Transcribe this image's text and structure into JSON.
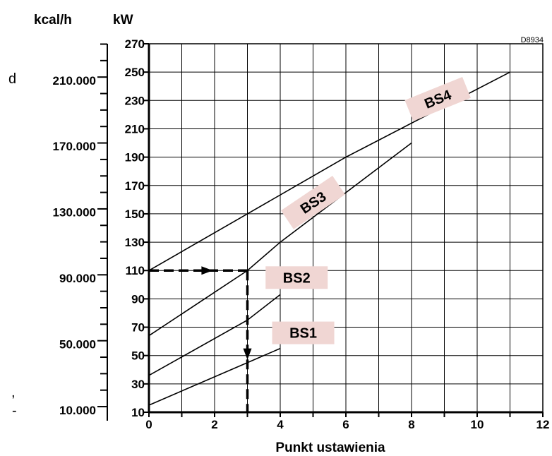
{
  "chart_data": {
    "type": "line",
    "reference_code": "D8934",
    "stray_marks": [
      "d",
      ",",
      "-"
    ],
    "xlabel": "Punkt ustawienia",
    "x_ticks": [
      "0",
      "2",
      "4",
      "6",
      "8",
      "10",
      "12"
    ],
    "xlim": [
      0,
      12
    ],
    "ylabel": "kW",
    "y_ticks": [
      "10",
      "30",
      "50",
      "70",
      "90",
      "110",
      "130",
      "150",
      "170",
      "190",
      "210",
      "230",
      "250",
      "270"
    ],
    "ylim": [
      10,
      270
    ],
    "secondary_ylabel": "kcal/h",
    "secondary_y_ticks": [
      "10.000",
      "50.000",
      "90.000",
      "130.000",
      "170.000",
      "210.000"
    ],
    "secondary_y_tick_values_kw": [
      11.6,
      58.1,
      104.7,
      151.2,
      197.7,
      244.2
    ],
    "grid": true,
    "series": [
      {
        "name": "BS1",
        "x": [
          0,
          3,
          4
        ],
        "y": [
          15,
          45,
          55
        ]
      },
      {
        "name": "BS2",
        "x": [
          0,
          3,
          4
        ],
        "y": [
          36,
          75,
          93
        ]
      },
      {
        "name": "BS3",
        "x": [
          0,
          3,
          4,
          8
        ],
        "y": [
          64,
          110,
          130,
          200
        ]
      },
      {
        "name": "BS4",
        "x": [
          0,
          3,
          6,
          11
        ],
        "y": [
          110,
          150,
          190,
          250
        ]
      }
    ],
    "example_path": {
      "x": [
        0,
        3,
        3
      ],
      "y": [
        110,
        110,
        10
      ]
    }
  }
}
